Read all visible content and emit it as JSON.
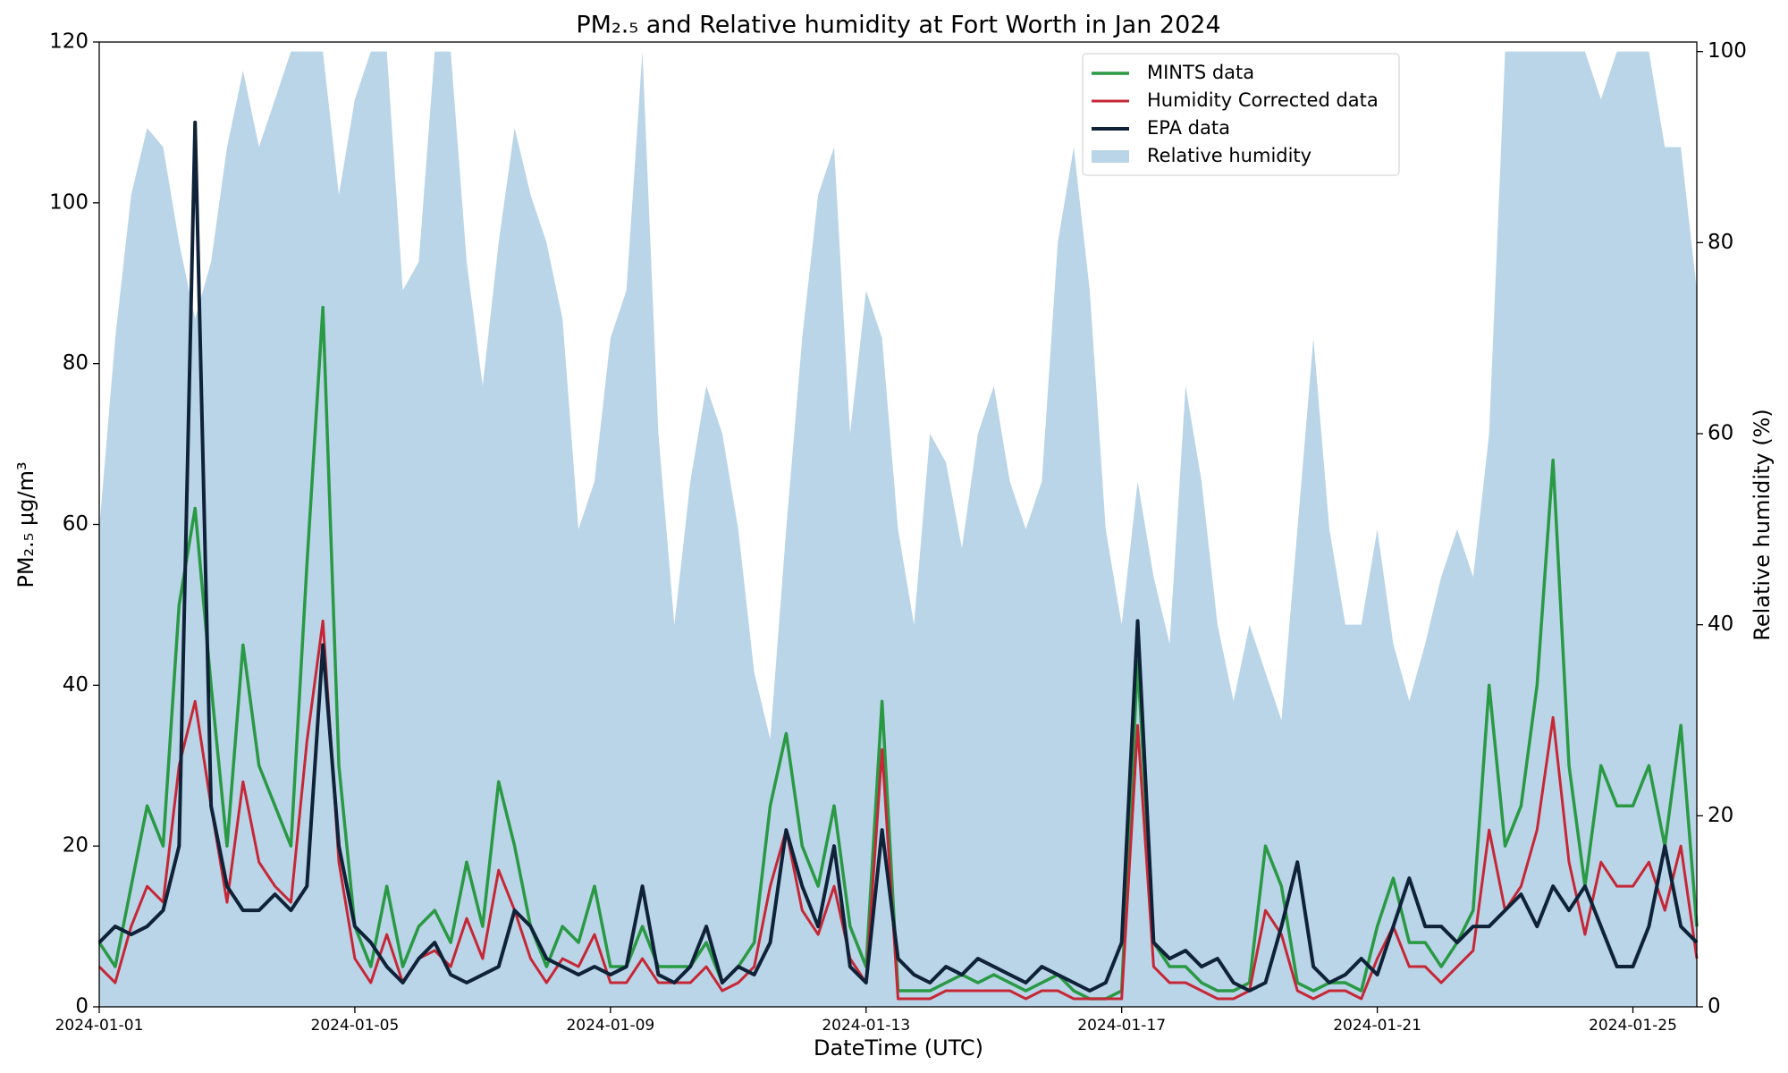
{
  "chart_data": {
    "type": "line",
    "title": "PM₂.₅ and Relative humidity at Fort Worth in Jan 2024",
    "xlabel": "DateTime (UTC)",
    "ylabel": "PM₂.₅  μg/m³",
    "y2label": "Relative humidity (%)",
    "x": [
      0,
      0.25,
      0.5,
      0.75,
      1,
      1.25,
      1.5,
      1.75,
      2,
      2.25,
      2.5,
      2.75,
      3,
      3.25,
      3.5,
      3.75,
      4,
      4.25,
      4.5,
      4.75,
      5,
      5.25,
      5.5,
      5.75,
      6,
      6.25,
      6.5,
      6.75,
      7,
      7.25,
      7.5,
      7.75,
      8,
      8.25,
      8.5,
      8.75,
      9,
      9.25,
      9.5,
      9.75,
      10,
      10.25,
      10.5,
      10.75,
      11,
      11.25,
      11.5,
      11.75,
      12,
      12.25,
      12.5,
      12.75,
      13,
      13.25,
      13.5,
      13.75,
      14,
      14.25,
      14.5,
      14.75,
      15,
      15.25,
      15.5,
      15.75,
      16,
      16.25,
      16.5,
      16.75,
      17,
      17.25,
      17.5,
      17.75,
      18,
      18.25,
      18.5,
      18.75,
      19,
      19.25,
      19.5,
      19.75,
      20,
      20.25,
      20.5,
      20.75,
      21,
      21.25,
      21.5,
      21.75,
      22,
      22.25,
      22.5,
      22.75,
      23,
      23.25,
      23.5,
      23.75,
      24,
      24.25,
      24.5,
      24.75,
      25
    ],
    "xlim": [
      0,
      25
    ],
    "xticks": [
      {
        "value": 0,
        "label": "2024-01-01"
      },
      {
        "value": 4,
        "label": "2024-01-05"
      },
      {
        "value": 8,
        "label": "2024-01-09"
      },
      {
        "value": 12,
        "label": "2024-01-13"
      },
      {
        "value": 16,
        "label": "2024-01-17"
      },
      {
        "value": 20,
        "label": "2024-01-21"
      },
      {
        "value": 24,
        "label": "2024-01-25"
      }
    ],
    "ylim": [
      0,
      120
    ],
    "yticks": [
      0,
      20,
      40,
      60,
      80,
      100,
      120
    ],
    "y2lim": [
      0,
      101
    ],
    "y2ticks": [
      0,
      20,
      40,
      60,
      80,
      100
    ],
    "grid": false,
    "series": [
      {
        "name": "MINTS data",
        "color": "#2a9944",
        "width": 3.5,
        "values": [
          8,
          5,
          15,
          25,
          20,
          50,
          62,
          40,
          20,
          45,
          30,
          25,
          20,
          55,
          87,
          30,
          10,
          5,
          15,
          5,
          10,
          12,
          8,
          18,
          10,
          28,
          20,
          10,
          5,
          10,
          8,
          15,
          5,
          5,
          10,
          5,
          5,
          5,
          8,
          3,
          5,
          8,
          25,
          34,
          20,
          15,
          25,
          10,
          5,
          38,
          2,
          2,
          2,
          3,
          4,
          3,
          4,
          3,
          2,
          3,
          4,
          2,
          1,
          1,
          2,
          43,
          8,
          5,
          5,
          3,
          2,
          2,
          3,
          20,
          15,
          3,
          2,
          3,
          3,
          2,
          10,
          16,
          8,
          8,
          5,
          8,
          12,
          40,
          20,
          25,
          40,
          68,
          30,
          15,
          30,
          25,
          25,
          30,
          20,
          35,
          10
        ]
      },
      {
        "name": "Humidity Corrected data",
        "color": "#c62736",
        "width": 3,
        "values": [
          5,
          3,
          10,
          15,
          13,
          30,
          38,
          25,
          13,
          28,
          18,
          15,
          13,
          33,
          48,
          18,
          6,
          3,
          9,
          3,
          6,
          7,
          5,
          11,
          6,
          17,
          12,
          6,
          3,
          6,
          5,
          9,
          3,
          3,
          6,
          3,
          3,
          3,
          5,
          2,
          3,
          5,
          15,
          22,
          12,
          9,
          15,
          6,
          3,
          32,
          1,
          1,
          1,
          2,
          2,
          2,
          2,
          2,
          1,
          2,
          2,
          1,
          1,
          1,
          1,
          35,
          5,
          3,
          3,
          2,
          1,
          1,
          2,
          12,
          9,
          2,
          1,
          2,
          2,
          1,
          6,
          10,
          5,
          5,
          3,
          5,
          7,
          22,
          12,
          15,
          22,
          36,
          18,
          9,
          18,
          15,
          15,
          18,
          12,
          20,
          6
        ]
      },
      {
        "name": "EPA data",
        "color": "#0f2238",
        "width": 4,
        "values": [
          8,
          10,
          9,
          10,
          12,
          20,
          110,
          25,
          15,
          12,
          12,
          14,
          12,
          15,
          45,
          20,
          10,
          8,
          5,
          3,
          6,
          8,
          4,
          3,
          4,
          5,
          12,
          10,
          6,
          5,
          4,
          5,
          4,
          5,
          15,
          4,
          3,
          5,
          10,
          3,
          5,
          4,
          8,
          22,
          15,
          10,
          20,
          5,
          3,
          22,
          6,
          4,
          3,
          5,
          4,
          6,
          5,
          4,
          3,
          5,
          4,
          3,
          2,
          3,
          8,
          48,
          8,
          6,
          7,
          5,
          6,
          3,
          2,
          3,
          10,
          18,
          5,
          3,
          4,
          6,
          4,
          10,
          16,
          10,
          10,
          8,
          10,
          10,
          12,
          14,
          10,
          15,
          12,
          15,
          10,
          5,
          5,
          10,
          20,
          10,
          8
        ]
      },
      {
        "name": "Relative humidity",
        "color": "#bad5e8",
        "type": "area",
        "axis": "y2",
        "values": [
          50,
          70,
          85,
          92,
          90,
          80,
          72,
          78,
          90,
          98,
          90,
          95,
          100,
          100,
          100,
          85,
          95,
          100,
          100,
          75,
          78,
          100,
          100,
          78,
          65,
          80,
          92,
          85,
          80,
          72,
          50,
          55,
          70,
          75,
          100,
          60,
          40,
          55,
          65,
          60,
          50,
          35,
          28,
          50,
          70,
          85,
          90,
          60,
          75,
          70,
          50,
          40,
          60,
          57,
          48,
          60,
          65,
          55,
          50,
          55,
          80,
          90,
          75,
          50,
          40,
          55,
          45,
          38,
          65,
          55,
          40,
          32,
          40,
          35,
          30,
          50,
          70,
          50,
          40,
          40,
          50,
          38,
          32,
          38,
          45,
          50,
          45,
          60,
          100,
          100,
          100,
          100,
          100,
          100,
          95,
          100,
          100,
          100,
          90,
          90,
          75
        ]
      }
    ]
  }
}
